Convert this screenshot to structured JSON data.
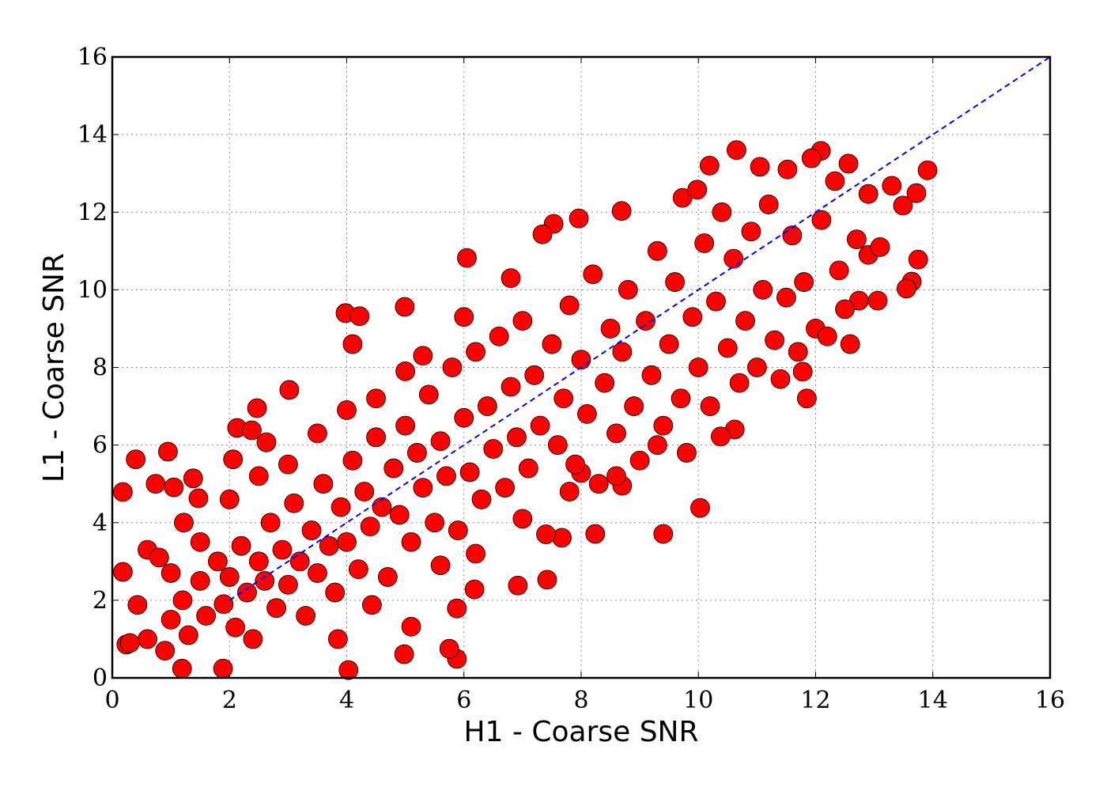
{
  "chart_data": {
    "type": "scatter",
    "xlabel": "H1 - Coarse SNR",
    "ylabel": "L1 - Coarse SNR",
    "xlim": [
      0,
      16
    ],
    "ylim": [
      0,
      16
    ],
    "xticks": [
      0,
      2,
      4,
      6,
      8,
      10,
      12,
      14,
      16
    ],
    "yticks": [
      0,
      2,
      4,
      6,
      8,
      10,
      12,
      14,
      16
    ],
    "grid": true,
    "series": [
      {
        "color": "#ff0000",
        "x": [
          0.18,
          0.18,
          0.4,
          0.95,
          0.43,
          0.24,
          0.74,
          1.05,
          1.38,
          1.22,
          1.47,
          1.19,
          1.89,
          4.03,
          4.98,
          5.88,
          5.75,
          3.85,
          6.05,
          3.98,
          4.22,
          4.1,
          4.99,
          3.02,
          2.47,
          2.63,
          2.06,
          2.13,
          2.38,
          10.65,
          12.09,
          11.93,
          10.19,
          11.52,
          11.05,
          12.56,
          13.91,
          13.3,
          13.72,
          12.9,
          12.33,
          13.49,
          13.75,
          13.64,
          13.55,
          13.06,
          12.74,
          12.59,
          11.85,
          11.78,
          10.03,
          9.4,
          8.24,
          7.53,
          7.96,
          8.69,
          7.34,
          9.73,
          9.98,
          8.0,
          8.7,
          10.62,
          10.38,
          6.18,
          6.92,
          7.42,
          5.88,
          5.1,
          4.43,
          7.67,
          1.0,
          1.2,
          1.3,
          1.5,
          1.6,
          1.8,
          1.9,
          2.0,
          2.1,
          2.2,
          2.3,
          2.4,
          2.5,
          2.6,
          2.7,
          2.8,
          2.9,
          3.0,
          3.1,
          3.2,
          3.3,
          3.4,
          3.5,
          3.6,
          3.7,
          3.8,
          3.9,
          4.0,
          4.1,
          4.2,
          4.3,
          4.4,
          4.5,
          4.6,
          4.7,
          4.8,
          4.9,
          5.0,
          5.1,
          5.2,
          5.3,
          5.4,
          5.5,
          5.6,
          5.7,
          5.8,
          5.9,
          6.0,
          6.1,
          6.2,
          6.3,
          6.4,
          6.5,
          6.6,
          6.7,
          6.8,
          6.9,
          7.0,
          7.1,
          7.2,
          7.3,
          7.4,
          7.5,
          7.6,
          7.7,
          7.8,
          7.9,
          8.0,
          8.1,
          8.2,
          8.3,
          8.4,
          8.5,
          8.6,
          8.7,
          8.8,
          8.9,
          9.0,
          9.1,
          9.2,
          9.3,
          9.4,
          9.5,
          9.6,
          9.7,
          9.8,
          9.9,
          10.0,
          10.1,
          10.2,
          10.3,
          10.4,
          10.5,
          10.6,
          10.7,
          10.8,
          10.9,
          11.0,
          11.1,
          11.2,
          11.3,
          11.4,
          11.5,
          11.6,
          11.7,
          11.8,
          12.0,
          12.1,
          12.2,
          12.4,
          12.5,
          12.7,
          12.9,
          13.1,
          3.0,
          3.5,
          4.0,
          4.5,
          5.0,
          5.3,
          6.0,
          6.8,
          5.6,
          6.2,
          7.0,
          7.8,
          8.6,
          9.3,
          2.0,
          2.5,
          1.5,
          1.0,
          0.6,
          0.8,
          0.9,
          0.6,
          0.3
        ],
        "y": [
          4.79,
          2.73,
          5.63,
          5.83,
          1.88,
          0.86,
          5.0,
          4.91,
          5.14,
          4.0,
          4.63,
          0.24,
          0.24,
          0.2,
          0.61,
          0.49,
          0.75,
          1.0,
          10.82,
          9.4,
          9.32,
          8.6,
          9.56,
          7.42,
          6.95,
          6.07,
          5.63,
          6.44,
          6.38,
          13.6,
          13.58,
          13.39,
          13.2,
          13.1,
          13.17,
          13.25,
          13.08,
          12.68,
          12.49,
          12.47,
          12.8,
          12.17,
          10.78,
          10.21,
          10.03,
          9.72,
          9.72,
          8.6,
          7.2,
          7.89,
          4.38,
          3.71,
          3.71,
          11.7,
          11.84,
          12.03,
          11.43,
          12.37,
          12.58,
          5.28,
          4.95,
          6.4,
          6.22,
          2.28,
          2.38,
          2.53,
          1.79,
          1.32,
          1.88,
          3.61,
          1.5,
          2.0,
          1.1,
          2.5,
          1.6,
          3.0,
          1.9,
          2.6,
          1.3,
          3.4,
          2.2,
          1.0,
          3.0,
          2.5,
          4.0,
          1.8,
          3.3,
          2.4,
          4.5,
          3.0,
          1.6,
          3.8,
          2.7,
          5.0,
          3.4,
          2.2,
          4.4,
          3.5,
          5.6,
          2.8,
          4.8,
          3.9,
          6.2,
          4.4,
          2.6,
          5.4,
          4.2,
          6.5,
          3.5,
          5.8,
          4.9,
          7.3,
          4.0,
          6.1,
          5.2,
          8.0,
          3.8,
          6.7,
          5.3,
          8.4,
          4.6,
          7.0,
          5.9,
          8.8,
          4.9,
          7.5,
          6.2,
          9.2,
          5.4,
          7.8,
          6.5,
          3.7,
          8.6,
          6.0,
          7.2,
          9.6,
          5.5,
          8.2,
          6.8,
          10.4,
          5.0,
          7.6,
          9.0,
          6.3,
          8.4,
          10.0,
          7.0,
          5.6,
          9.2,
          7.8,
          11.0,
          6.5,
          8.6,
          10.2,
          7.2,
          5.8,
          9.3,
          8.0,
          11.2,
          7.0,
          9.7,
          12.0,
          8.5,
          10.8,
          7.6,
          9.2,
          11.5,
          8.0,
          10.0,
          12.2,
          8.7,
          7.7,
          9.8,
          11.4,
          8.4,
          10.2,
          9.0,
          11.8,
          8.8,
          10.5,
          9.5,
          11.3,
          10.9,
          11.1,
          5.5,
          6.3,
          6.9,
          7.2,
          7.9,
          8.3,
          9.3,
          10.3,
          2.9,
          3.2,
          4.1,
          4.8,
          5.2,
          6.0,
          4.6,
          5.2,
          3.5,
          2.7,
          3.3,
          3.1,
          0.7,
          1.0,
          0.9
        ]
      }
    ],
    "reference_line": {
      "x": [
        2,
        16
      ],
      "y": [
        2,
        16
      ],
      "color": "#0000ff",
      "style": "dashed"
    }
  }
}
